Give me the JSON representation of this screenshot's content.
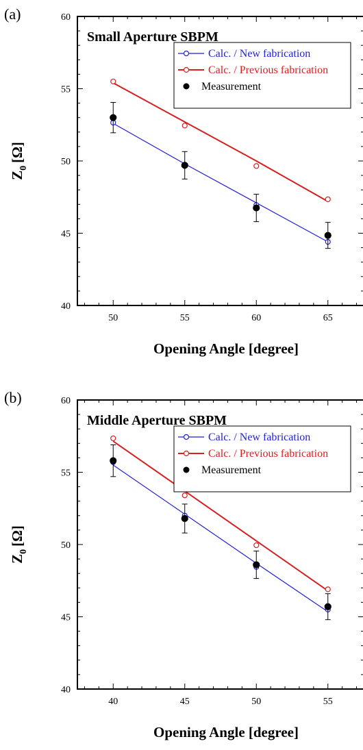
{
  "chart_data": [
    {
      "type": "line",
      "panel_label": "(a)",
      "title": "Small Aperture SBPM",
      "xlabel": "Opening Angle [degree]",
      "ylabel_main": "Z",
      "ylabel_sub": "0",
      "ylabel_unit": "[Ω]",
      "xlim": [
        47.5,
        67.5
      ],
      "ylim": [
        40,
        60
      ],
      "xticks": [
        50,
        55,
        60,
        65
      ],
      "yticks": [
        40,
        45,
        50,
        55,
        60
      ],
      "x": [
        50,
        55,
        60,
        65
      ],
      "legend_position": "top-right",
      "series": [
        {
          "name": "Calc. / New fabrication",
          "color": "#1f1fd6",
          "marker": "open-circle",
          "points": [
            52.65,
            49.65,
            46.95,
            44.4
          ],
          "fit": [
            52.6,
            49.8,
            47.1,
            44.4
          ]
        },
        {
          "name": "Calc. / Previous fabrication",
          "color": "#d61f1f",
          "marker": "open-circle",
          "points": [
            55.5,
            52.45,
            49.65,
            47.35
          ],
          "fit": [
            55.4,
            52.7,
            50.0,
            47.2
          ]
        },
        {
          "name": "Measurement",
          "color": "#000000",
          "marker": "filled-circle",
          "points": [
            53.0,
            49.7,
            46.75,
            44.85
          ],
          "errors": [
            1.05,
            0.95,
            0.95,
            0.9
          ]
        }
      ]
    },
    {
      "type": "line",
      "panel_label": "(b)",
      "title": "Middle Aperture SBPM",
      "xlabel": "Opening Angle [degree]",
      "ylabel_main": "Z",
      "ylabel_sub": "0",
      "ylabel_unit": "[Ω]",
      "xlim": [
        37.5,
        57.5
      ],
      "ylim": [
        40,
        60
      ],
      "xticks": [
        40,
        45,
        50,
        55
      ],
      "yticks": [
        40,
        45,
        50,
        55,
        60
      ],
      "x": [
        40,
        45,
        50,
        55
      ],
      "legend_position": "top-right",
      "series": [
        {
          "name": "Calc. / New fabrication",
          "color": "#1f1fd6",
          "marker": "open-circle",
          "points": [
            55.7,
            52.0,
            48.45,
            45.5
          ],
          "fit": [
            55.5,
            52.1,
            48.7,
            45.35
          ]
        },
        {
          "name": "Calc. / Previous fabrication",
          "color": "#d61f1f",
          "marker": "open-circle",
          "points": [
            57.35,
            53.4,
            49.95,
            46.9
          ],
          "fit": [
            57.15,
            53.7,
            50.25,
            46.8
          ]
        },
        {
          "name": "Measurement",
          "color": "#000000",
          "marker": "filled-circle",
          "points": [
            55.8,
            51.8,
            48.6,
            45.7
          ],
          "errors": [
            1.1,
            1.0,
            0.95,
            0.9
          ]
        }
      ]
    }
  ]
}
